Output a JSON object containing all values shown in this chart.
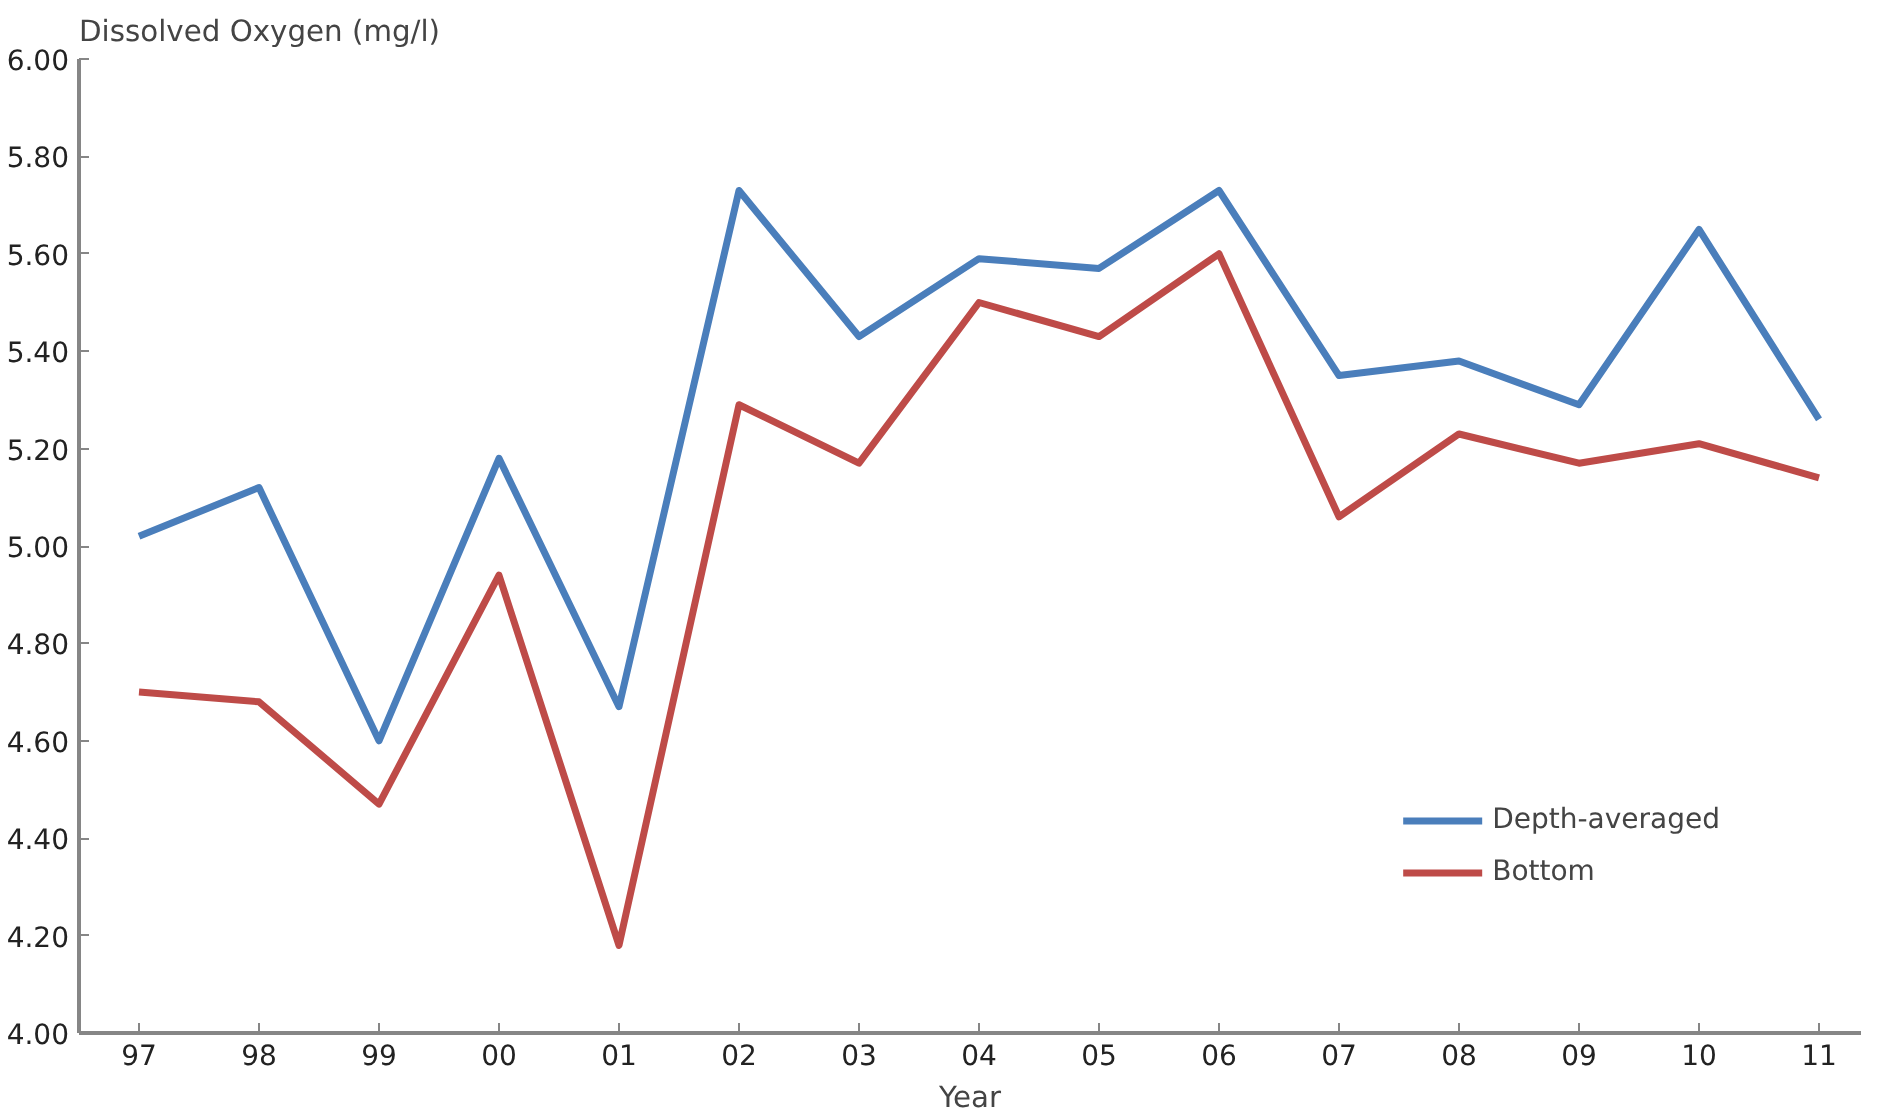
{
  "chart_data": {
    "type": "line",
    "ylabel": "Dissolved Oxygen (mg/l)",
    "xlabel": "Year",
    "categories": [
      "97",
      "98",
      "99",
      "00",
      "01",
      "02",
      "03",
      "04",
      "05",
      "06",
      "07",
      "08",
      "09",
      "10",
      "11"
    ],
    "ylim": [
      4.0,
      6.0
    ],
    "yticks": [
      {
        "value": 4.0,
        "label": "4.00"
      },
      {
        "value": 4.2,
        "label": "4.20"
      },
      {
        "value": 4.4,
        "label": "4.40"
      },
      {
        "value": 4.6,
        "label": "4.60"
      },
      {
        "value": 4.8,
        "label": "4.80"
      },
      {
        "value": 5.0,
        "label": "5.00"
      },
      {
        "value": 5.2,
        "label": "5.20"
      },
      {
        "value": 5.4,
        "label": "5.40"
      },
      {
        "value": 5.6,
        "label": "5.60"
      },
      {
        "value": 5.8,
        "label": "5.80"
      },
      {
        "value": 6.0,
        "label": "6.00"
      }
    ],
    "grid": false,
    "legend": "bottom right",
    "marker": "none",
    "line_style": "solid",
    "series": [
      {
        "name": "Depth-averaged",
        "color": "#4a7ebb",
        "values": [
          5.02,
          5.12,
          4.6,
          5.18,
          4.67,
          5.73,
          5.43,
          5.59,
          5.57,
          5.73,
          5.35,
          5.38,
          5.29,
          5.65,
          5.26
        ]
      },
      {
        "name": "Bottom",
        "color": "#be4b48",
        "values": [
          4.7,
          4.68,
          4.47,
          4.94,
          4.18,
          5.29,
          5.17,
          5.5,
          5.43,
          5.6,
          5.06,
          5.23,
          5.17,
          5.21,
          5.14
        ]
      }
    ]
  }
}
